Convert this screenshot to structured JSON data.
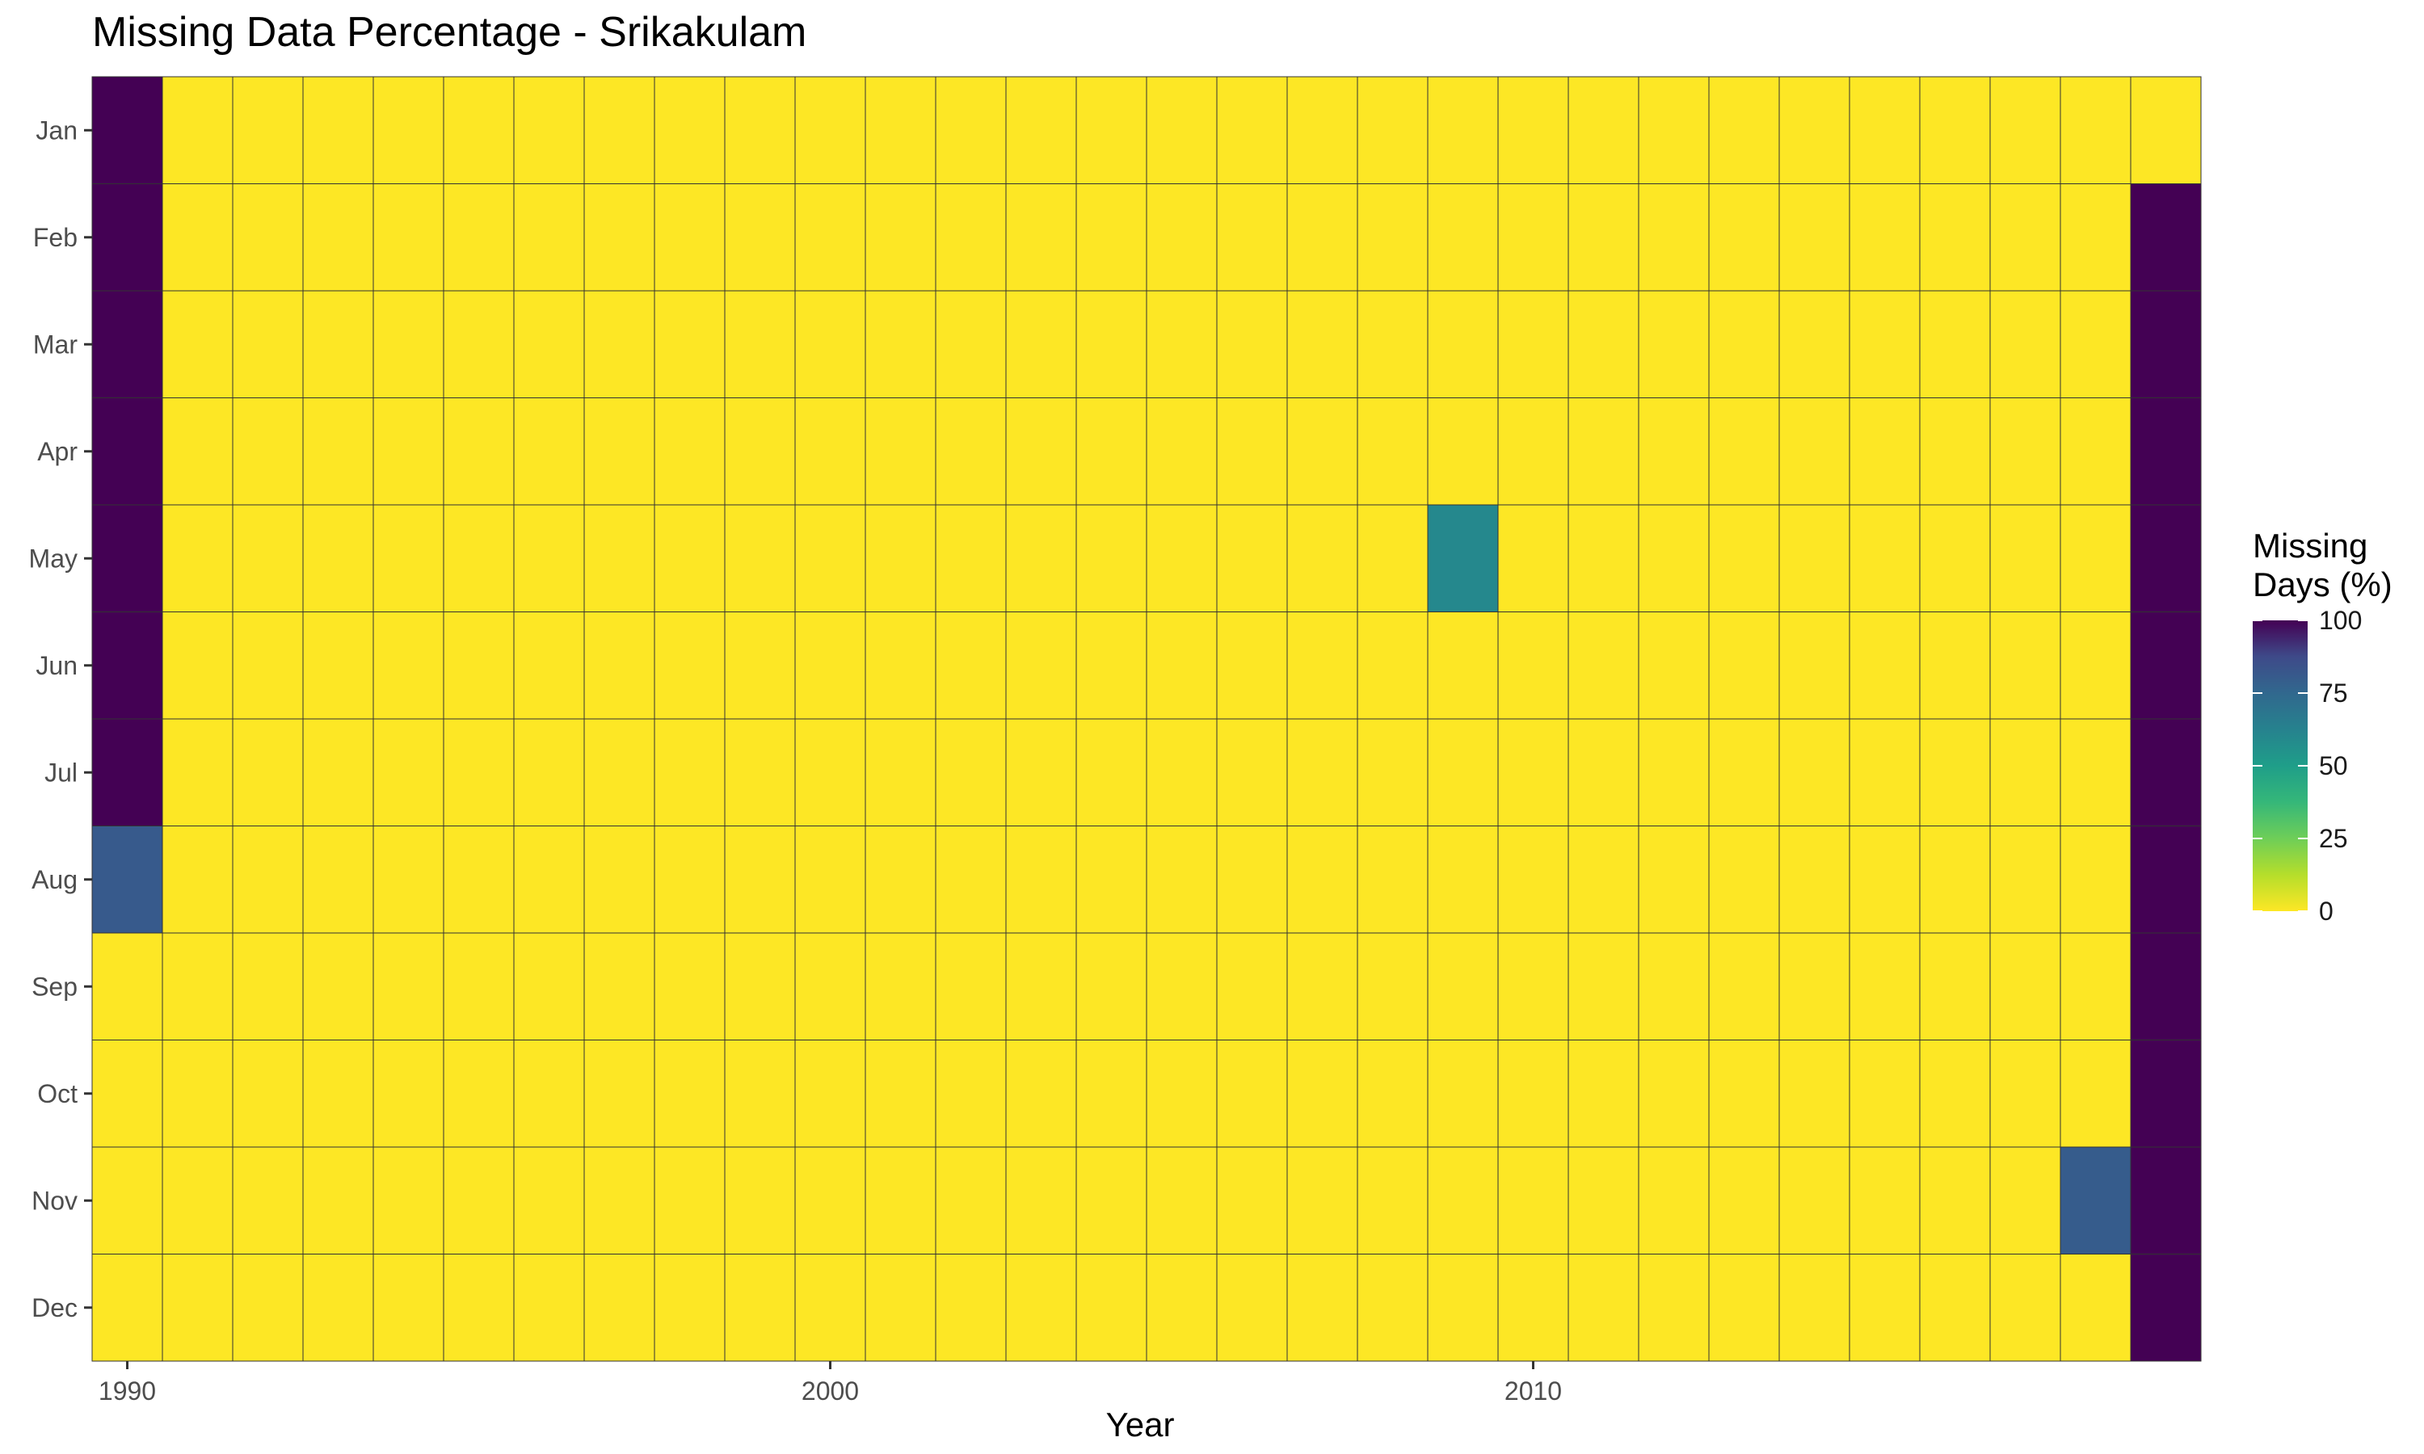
{
  "chart_data": {
    "type": "heatmap",
    "title": "Missing Data Percentage - Srikakulam",
    "xlabel": "Year",
    "ylabel": "",
    "x_ticks": [
      1990,
      2000,
      2010
    ],
    "years": [
      1990,
      1991,
      1992,
      1993,
      1994,
      1995,
      1996,
      1997,
      1998,
      1999,
      2000,
      2001,
      2002,
      2003,
      2004,
      2005,
      2006,
      2007,
      2008,
      2009,
      2010,
      2011,
      2012,
      2013,
      2014,
      2015,
      2016,
      2017,
      2018,
      2019
    ],
    "months": [
      "Jan",
      "Feb",
      "Mar",
      "Apr",
      "May",
      "Jun",
      "Jul",
      "Aug",
      "Sep",
      "Oct",
      "Nov",
      "Dec"
    ],
    "values": [
      [
        100,
        0,
        0,
        0,
        0,
        0,
        0,
        0,
        0,
        0,
        0,
        0,
        0,
        0,
        0,
        0,
        0,
        0,
        0,
        0,
        0,
        0,
        0,
        0,
        0,
        0,
        0,
        0,
        0,
        0
      ],
      [
        100,
        0,
        0,
        0,
        0,
        0,
        0,
        0,
        0,
        0,
        0,
        0,
        0,
        0,
        0,
        0,
        0,
        0,
        0,
        0,
        0,
        0,
        0,
        0,
        0,
        0,
        0,
        0,
        0,
        100
      ],
      [
        100,
        0,
        0,
        0,
        0,
        0,
        0,
        0,
        0,
        0,
        0,
        0,
        0,
        0,
        0,
        0,
        0,
        0,
        0,
        0,
        0,
        0,
        0,
        0,
        0,
        0,
        0,
        0,
        0,
        100
      ],
      [
        100,
        0,
        0,
        0,
        0,
        0,
        0,
        0,
        0,
        0,
        0,
        0,
        0,
        0,
        0,
        0,
        0,
        0,
        0,
        0,
        0,
        0,
        0,
        0,
        0,
        0,
        0,
        0,
        0,
        100
      ],
      [
        100,
        0,
        0,
        0,
        0,
        0,
        0,
        0,
        0,
        0,
        0,
        0,
        0,
        0,
        0,
        0,
        0,
        0,
        0,
        60,
        0,
        0,
        0,
        0,
        0,
        0,
        0,
        0,
        0,
        100
      ],
      [
        100,
        0,
        0,
        0,
        0,
        0,
        0,
        0,
        0,
        0,
        0,
        0,
        0,
        0,
        0,
        0,
        0,
        0,
        0,
        0,
        0,
        0,
        0,
        0,
        0,
        0,
        0,
        0,
        0,
        100
      ],
      [
        100,
        0,
        0,
        0,
        0,
        0,
        0,
        0,
        0,
        0,
        0,
        0,
        0,
        0,
        0,
        0,
        0,
        0,
        0,
        0,
        0,
        0,
        0,
        0,
        0,
        0,
        0,
        0,
        0,
        100
      ],
      [
        81,
        0,
        0,
        0,
        0,
        0,
        0,
        0,
        0,
        0,
        0,
        0,
        0,
        0,
        0,
        0,
        0,
        0,
        0,
        0,
        0,
        0,
        0,
        0,
        0,
        0,
        0,
        0,
        0,
        100
      ],
      [
        0,
        0,
        0,
        0,
        0,
        0,
        0,
        0,
        0,
        0,
        0,
        0,
        0,
        0,
        0,
        0,
        0,
        0,
        0,
        0,
        0,
        0,
        0,
        0,
        0,
        0,
        0,
        0,
        0,
        100
      ],
      [
        0,
        0,
        0,
        0,
        0,
        0,
        0,
        0,
        0,
        0,
        0,
        0,
        0,
        0,
        0,
        0,
        0,
        0,
        0,
        0,
        0,
        0,
        0,
        0,
        0,
        0,
        0,
        0,
        0,
        100
      ],
      [
        0,
        0,
        0,
        0,
        0,
        0,
        0,
        0,
        0,
        0,
        0,
        0,
        0,
        0,
        0,
        0,
        0,
        0,
        0,
        0,
        0,
        0,
        0,
        0,
        0,
        0,
        0,
        0,
        80,
        100
      ],
      [
        0,
        0,
        0,
        0,
        0,
        0,
        0,
        0,
        0,
        0,
        0,
        0,
        0,
        0,
        0,
        0,
        0,
        0,
        0,
        0,
        0,
        0,
        0,
        0,
        0,
        0,
        0,
        0,
        0,
        100
      ]
    ],
    "legend": {
      "title": [
        "Missing",
        "Days (%)"
      ],
      "ticks": [
        0,
        25,
        50,
        75,
        100
      ],
      "range": [
        0,
        100
      ],
      "placement": "right",
      "palette": "viridis reversed"
    },
    "colors": {
      "low": "#fde725",
      "high": "#440154",
      "cell_border": "#333333"
    },
    "grid": false
  }
}
